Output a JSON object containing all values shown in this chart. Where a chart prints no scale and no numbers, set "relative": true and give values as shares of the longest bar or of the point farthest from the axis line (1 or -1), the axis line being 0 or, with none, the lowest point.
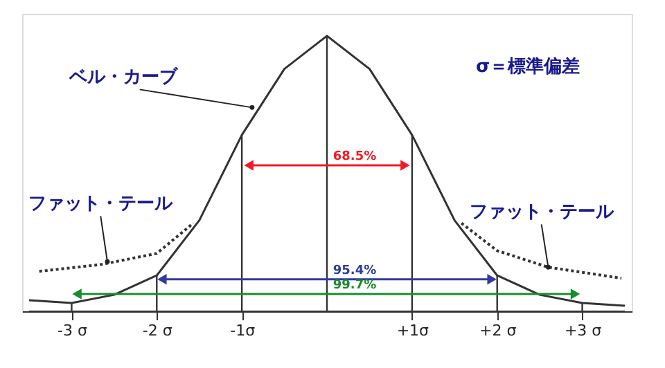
{
  "chart_data": {
    "type": "line",
    "relative": true,
    "xlim": [
      -3.5,
      3.5
    ],
    "xticks": [
      {
        "value": -3,
        "label": "-3 σ"
      },
      {
        "value": -2,
        "label": "-2 σ"
      },
      {
        "value": -1,
        "label": "-1σ"
      },
      {
        "value": 1,
        "label": "+1σ"
      },
      {
        "value": 2,
        "label": "+2 σ"
      },
      {
        "value": 3,
        "label": "+3 σ"
      }
    ],
    "grid": false,
    "line_style": "solid",
    "series": [
      {
        "color": "#333333",
        "x": [
          -3.5,
          -3,
          -2.5,
          -2,
          -1.5,
          -1,
          -0.5,
          0,
          0.5,
          1,
          1.5,
          2,
          2.5,
          3,
          3.5
        ],
        "values": [
          0.04,
          0.03,
          0.06,
          0.13,
          0.33,
          0.64,
          0.88,
          1,
          0.88,
          0.64,
          0.33,
          0.13,
          0.06,
          0.03,
          0.02
        ]
      },
      {
        "color": "#333333",
        "line_style": "dotted",
        "x": [
          -3.38,
          -2.65,
          -2,
          -1.57
        ],
        "values": [
          0.145,
          0.17,
          0.21,
          0.32
        ]
      },
      {
        "color": "#333333",
        "line_style": "dotted",
        "x": [
          1.58,
          2.0,
          2.6,
          3.46
        ],
        "values": [
          0.32,
          0.22,
          0.16,
          0.12
        ]
      },
      {
        "type": "bar",
        "color": "#333333",
        "x": [
          -3,
          -2,
          -1,
          0,
          1,
          2,
          3
        ],
        "values": [
          0.03,
          0.13,
          0.64,
          1,
          0.64,
          0.13,
          0.03
        ]
      },
      {
        "color": "#ee1c25",
        "marker": "triangle",
        "x": [
          -0.9,
          0.9
        ],
        "values": [
          0.53,
          0.53
        ]
      },
      {
        "color": "#2e3d9e",
        "marker": "triangle",
        "x": [
          -1.92,
          1.92
        ],
        "values": [
          0.116,
          0.116
        ]
      },
      {
        "color": "#1a8c2e",
        "marker": "triangle",
        "x": [
          -2.92,
          2.9
        ],
        "values": [
          0.063,
          0.063
        ]
      }
    ],
    "annotations": [
      {
        "text": "ベル・カーブ",
        "x": -0.88,
        "y": 0.74
      },
      {
        "text": "ファット・テール",
        "x": -2.58,
        "y": 0.18
      },
      {
        "text": "ファット・テール",
        "x": 2.6,
        "y": 0.16
      },
      "σ＝標準偏差",
      {
        "text": "68.5%",
        "x": 0,
        "y": 0.53
      },
      {
        "text": "95.4%",
        "x": 0,
        "y": 0.116
      },
      {
        "text": "99.7%",
        "x": 0,
        "y": 0.063
      }
    ]
  }
}
